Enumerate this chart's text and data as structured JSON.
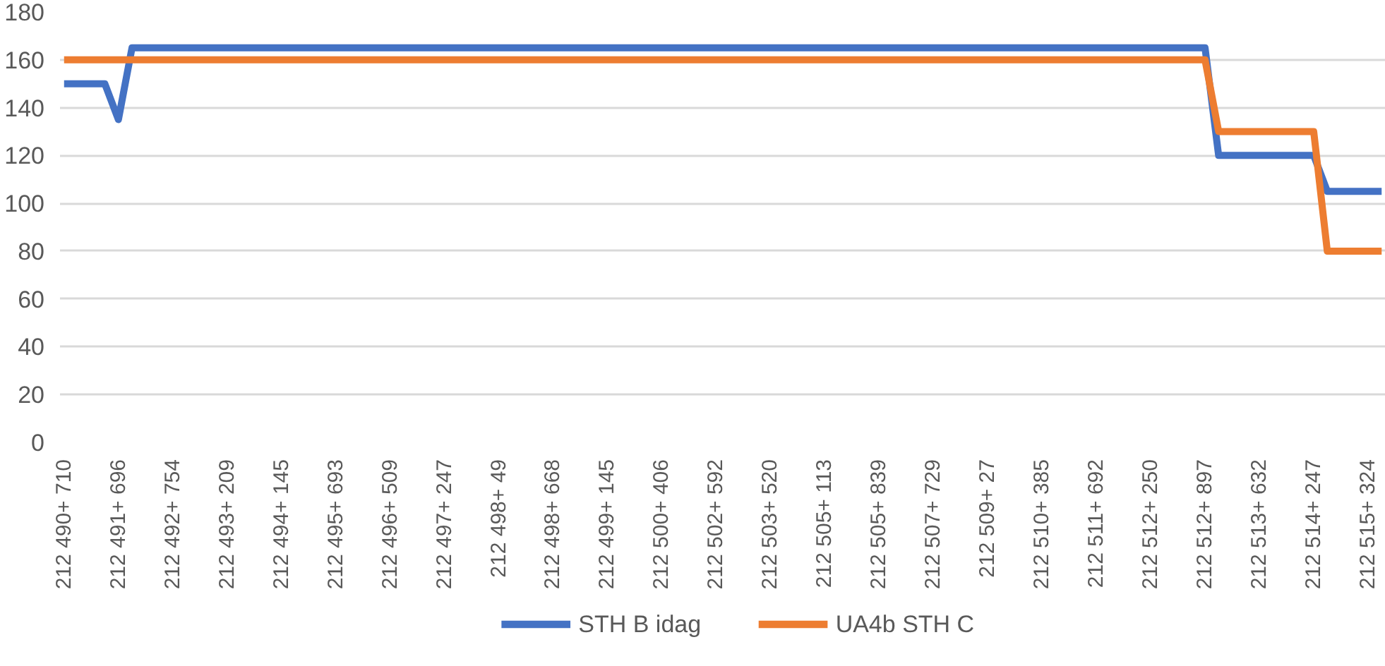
{
  "chart_data": {
    "type": "line",
    "categories": [
      "212 490+ 710",
      null,
      null,
      null,
      "212 491+ 696",
      null,
      null,
      null,
      "212 492+ 754",
      null,
      null,
      null,
      "212 493+ 209",
      null,
      null,
      null,
      "212 494+ 145",
      null,
      null,
      null,
      "212 495+ 693",
      null,
      null,
      null,
      "212 496+ 509",
      null,
      null,
      null,
      "212 497+ 247",
      null,
      null,
      null,
      "212 498+ 49",
      null,
      null,
      null,
      "212 498+ 668",
      null,
      null,
      null,
      "212 499+ 145",
      null,
      null,
      null,
      "212 500+ 406",
      null,
      null,
      null,
      "212 502+ 592",
      null,
      null,
      null,
      "212 503+ 520",
      null,
      null,
      null,
      "212 505+ 113",
      null,
      null,
      null,
      "212 505+ 839",
      null,
      null,
      null,
      "212 507+ 729",
      null,
      null,
      null,
      "212 509+ 27",
      null,
      null,
      null,
      "212 510+ 385",
      null,
      null,
      null,
      "212 511+ 692",
      null,
      null,
      null,
      "212 512+ 250",
      null,
      null,
      null,
      "212 512+ 897",
      null,
      null,
      null,
      "212 513+ 632",
      null,
      null,
      null,
      "212 514+ 247",
      null,
      null,
      null,
      "212 515+ 324",
      null
    ],
    "series": [
      {
        "name": "STH B idag",
        "color": "#4472c4",
        "values": [
          150,
          150,
          150,
          150,
          135,
          165,
          165,
          165,
          165,
          165,
          165,
          165,
          165,
          165,
          165,
          165,
          165,
          165,
          165,
          165,
          165,
          165,
          165,
          165,
          165,
          165,
          165,
          165,
          165,
          165,
          165,
          165,
          165,
          165,
          165,
          165,
          165,
          165,
          165,
          165,
          165,
          165,
          165,
          165,
          165,
          165,
          165,
          165,
          165,
          165,
          165,
          165,
          165,
          165,
          165,
          165,
          165,
          165,
          165,
          165,
          165,
          165,
          165,
          165,
          165,
          165,
          165,
          165,
          165,
          165,
          165,
          165,
          165,
          165,
          165,
          165,
          165,
          165,
          165,
          165,
          165,
          165,
          165,
          165,
          165,
          120,
          120,
          120,
          120,
          120,
          120,
          120,
          120,
          105,
          105,
          105,
          105,
          105
        ]
      },
      {
        "name": "UA4b STH C",
        "color": "#ed7d31",
        "values": [
          160,
          160,
          160,
          160,
          160,
          160,
          160,
          160,
          160,
          160,
          160,
          160,
          160,
          160,
          160,
          160,
          160,
          160,
          160,
          160,
          160,
          160,
          160,
          160,
          160,
          160,
          160,
          160,
          160,
          160,
          160,
          160,
          160,
          160,
          160,
          160,
          160,
          160,
          160,
          160,
          160,
          160,
          160,
          160,
          160,
          160,
          160,
          160,
          160,
          160,
          160,
          160,
          160,
          160,
          160,
          160,
          160,
          160,
          160,
          160,
          160,
          160,
          160,
          160,
          160,
          160,
          160,
          160,
          160,
          160,
          160,
          160,
          160,
          160,
          160,
          160,
          160,
          160,
          160,
          160,
          160,
          160,
          160,
          160,
          160,
          130,
          130,
          130,
          130,
          130,
          130,
          130,
          130,
          80,
          80,
          80,
          80,
          80
        ]
      }
    ],
    "ylim": [
      0,
      180
    ],
    "yticks": [
      0,
      20,
      40,
      60,
      80,
      100,
      120,
      140,
      160,
      180
    ],
    "grid": "y",
    "legend": "bottom",
    "marker": "none",
    "line_style": "solid"
  }
}
